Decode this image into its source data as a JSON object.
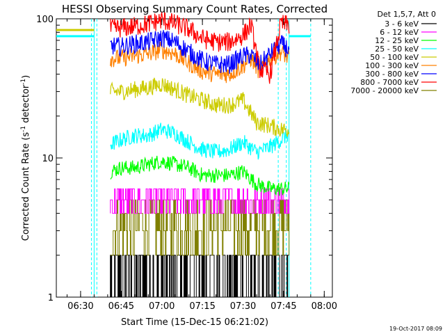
{
  "chart_data": {
    "type": "line",
    "title": "HESSI Observing Summary Count Rates, Corrected",
    "xlabel": "Start Time (15-Dec-15 06:21:02)",
    "ylabel_parts": [
      "Corrected Count Rate (s",
      "-1",
      " detector",
      "-1",
      ")"
    ],
    "x_ticks": [
      "06:30",
      "06:45",
      "07:00",
      "07:15",
      "07:30",
      "07:45",
      "08:00"
    ],
    "x_range": [
      "06:21:02",
      "08:03:00"
    ],
    "y_scale": "log",
    "y_range": [
      1,
      100
    ],
    "y_ticks": [
      "1",
      "10",
      "100"
    ],
    "legend_title": "Det 1,5,7, Att 0",
    "legend_placement": "right",
    "timestamp": "19-Oct-2017 08:09",
    "dashed_vertical_lines": [
      "06:34:00",
      "06:36:00",
      "07:43:00",
      "07:46:00",
      "07:55:00"
    ],
    "solid_vertical_lines": [
      "06:35:00",
      "07:47:00"
    ],
    "pre_gap_segments": [
      {
        "series": "25 - 50 keV",
        "from": "06:21:02",
        "to": "06:35:00",
        "value": 75
      },
      {
        "series": "50 - 100 keV",
        "from": "06:21:02",
        "to": "06:35:00",
        "value": 83
      }
    ],
    "post_gap_segments": [
      {
        "series": "25 - 50 keV",
        "from": "07:47:00",
        "to": "07:55:00",
        "value": 75
      }
    ],
    "series": [
      {
        "name": "3 - 6 keV",
        "color": "#000000",
        "step_levels": [
          1,
          2
        ],
        "time_range": [
          "06:41:00",
          "07:47:00"
        ]
      },
      {
        "name": "6 - 12 keV",
        "color": "#ff00ff",
        "step_levels": [
          4,
          5,
          6
        ],
        "time_range": [
          "06:41:00",
          "07:47:00"
        ]
      },
      {
        "name": "12 - 25 keV",
        "color": "#00ff00",
        "times": [
          "06:41",
          "06:45",
          "06:50",
          "06:55",
          "07:00",
          "07:05",
          "07:10",
          "07:15",
          "07:20",
          "07:25",
          "07:30",
          "07:35",
          "07:40",
          "07:44",
          "07:47"
        ],
        "values": [
          8.0,
          8.5,
          8.5,
          9.0,
          9.5,
          9.0,
          8.5,
          7.5,
          7.5,
          7.5,
          8.0,
          6.5,
          6.0,
          6.0,
          6.0
        ]
      },
      {
        "name": "25 - 50 keV",
        "color": "#00ffff",
        "times": [
          "06:41",
          "06:45",
          "06:50",
          "06:55",
          "07:00",
          "07:05",
          "07:10",
          "07:15",
          "07:20",
          "07:25",
          "07:30",
          "07:35",
          "07:40",
          "07:44",
          "07:47"
        ],
        "values": [
          12.5,
          13.5,
          14.5,
          14.5,
          16.0,
          15.0,
          13.0,
          11.5,
          11.0,
          11.5,
          13.0,
          11.0,
          12.0,
          13.5,
          15.0
        ]
      },
      {
        "name": "50 - 100 keV",
        "color": "#cccc00",
        "times": [
          "06:41",
          "06:45",
          "06:50",
          "06:55",
          "07:00",
          "07:05",
          "07:10",
          "07:15",
          "07:20",
          "07:25",
          "07:30",
          "07:35",
          "07:40",
          "07:44",
          "07:47"
        ],
        "values": [
          30,
          30,
          31,
          32,
          34,
          31,
          28,
          26,
          24,
          24,
          26,
          18,
          17,
          16,
          16
        ]
      },
      {
        "name": "100 - 300 keV",
        "color": "#ff8000",
        "times": [
          "06:41",
          "06:45",
          "06:50",
          "06:55",
          "07:00",
          "07:05",
          "07:10",
          "07:15",
          "07:20",
          "07:25",
          "07:30",
          "07:33",
          "07:36",
          "07:40",
          "07:44",
          "07:47"
        ],
        "values": [
          52,
          52,
          54,
          56,
          60,
          56,
          48,
          42,
          40,
          40,
          46,
          52,
          42,
          52,
          58,
          52
        ]
      },
      {
        "name": "300 - 800 keV",
        "color": "#0000ff",
        "times": [
          "06:41",
          "06:45",
          "06:50",
          "06:55",
          "07:00",
          "07:05",
          "07:10",
          "07:15",
          "07:20",
          "07:25",
          "07:30",
          "07:33",
          "07:36",
          "07:40",
          "07:44",
          "07:47"
        ],
        "values": [
          64,
          63,
          66,
          68,
          73,
          68,
          58,
          50,
          47,
          47,
          54,
          55,
          46,
          56,
          66,
          60
        ]
      },
      {
        "name": "800 - 7000 keV",
        "color": "#ff0000",
        "times": [
          "06:41",
          "06:45",
          "06:50",
          "06:55",
          "07:00",
          "07:05",
          "07:10",
          "07:15",
          "07:20",
          "07:25",
          "07:30",
          "07:33",
          "07:36",
          "07:40",
          "07:44",
          "07:47"
        ],
        "values": [
          85,
          86,
          88,
          92,
          98,
          92,
          84,
          72,
          68,
          68,
          76,
          90,
          44,
          40,
          92,
          90
        ]
      },
      {
        "name": "7000 - 20000 keV",
        "color": "#808000",
        "step_levels": [
          2,
          3,
          4,
          5
        ],
        "time_range": [
          "06:41:00",
          "07:47:00"
        ]
      }
    ]
  }
}
